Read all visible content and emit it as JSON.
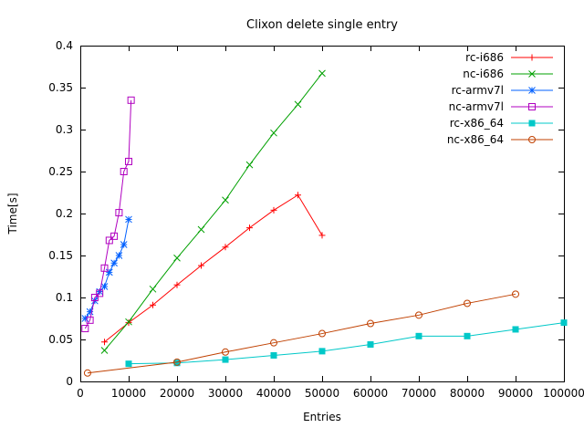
{
  "page": {
    "background": "#ffffff"
  },
  "chart_data": {
    "type": "line",
    "title": "Clixon delete single entry",
    "xlabel": "Entries",
    "ylabel": "Time[s]",
    "xlim": [
      0,
      100000
    ],
    "ylim": [
      0,
      0.4
    ],
    "grid": false,
    "legend_position": "top-right-inside",
    "x_ticks": [
      0,
      10000,
      20000,
      30000,
      40000,
      50000,
      60000,
      70000,
      80000,
      90000,
      100000
    ],
    "x_tick_labels": [
      "0",
      "10000",
      "20000",
      "30000",
      "40000",
      "50000",
      "60000",
      "70000",
      "80000",
      "90000",
      "100000"
    ],
    "y_ticks": [
      0,
      0.05,
      0.1,
      0.15,
      0.2,
      0.25,
      0.3,
      0.35,
      0.4
    ],
    "y_tick_labels": [
      "0",
      "0.05",
      "0.1",
      "0.15",
      "0.2",
      "0.25",
      "0.3",
      "0.35",
      "0.4"
    ],
    "series": [
      {
        "name": "rc-i686",
        "color": "#ff0000",
        "marker": "plus",
        "x": [
          5000,
          10000,
          15000,
          20000,
          25000,
          30000,
          35000,
          40000,
          45000,
          50000
        ],
        "y": [
          0.047,
          0.07,
          0.091,
          0.115,
          0.138,
          0.16,
          0.183,
          0.204,
          0.222,
          0.174
        ]
      },
      {
        "name": "nc-i686",
        "color": "#00a000",
        "marker": "cross",
        "x": [
          5000,
          10000,
          15000,
          20000,
          25000,
          30000,
          35000,
          40000,
          45000,
          50000
        ],
        "y": [
          0.037,
          0.071,
          0.11,
          0.147,
          0.181,
          0.216,
          0.258,
          0.296,
          0.33,
          0.367
        ]
      },
      {
        "name": "rc-armv7l",
        "color": "#0060ff",
        "marker": "asterisk",
        "x": [
          1000,
          2000,
          3000,
          4000,
          5000,
          6000,
          7000,
          8000,
          9000,
          10000
        ],
        "y": [
          0.075,
          0.083,
          0.096,
          0.107,
          0.113,
          0.13,
          0.141,
          0.15,
          0.163,
          0.193
        ]
      },
      {
        "name": "nc-armv7l",
        "color": "#b000c0",
        "marker": "square-open",
        "x": [
          1000,
          2000,
          3000,
          4000,
          5000,
          6000,
          7000,
          8000,
          9000,
          10000,
          10500
        ],
        "y": [
          0.063,
          0.073,
          0.1,
          0.105,
          0.135,
          0.168,
          0.173,
          0.201,
          0.25,
          0.262,
          0.335
        ]
      },
      {
        "name": "rc-x86_64",
        "color": "#00c8c8",
        "marker": "square-filled",
        "x": [
          10000,
          20000,
          30000,
          40000,
          50000,
          60000,
          70000,
          80000,
          90000,
          100000
        ],
        "y": [
          0.021,
          0.022,
          0.026,
          0.031,
          0.036,
          0.044,
          0.054,
          0.054,
          0.062,
          0.07
        ]
      },
      {
        "name": "nc-x86_64",
        "color": "#c04000",
        "marker": "circle-open",
        "x": [
          1500,
          20000,
          30000,
          40000,
          50000,
          60000,
          70000,
          80000,
          90000
        ],
        "y": [
          0.01,
          0.023,
          0.035,
          0.046,
          0.057,
          0.069,
          0.079,
          0.093,
          0.104
        ]
      }
    ]
  }
}
